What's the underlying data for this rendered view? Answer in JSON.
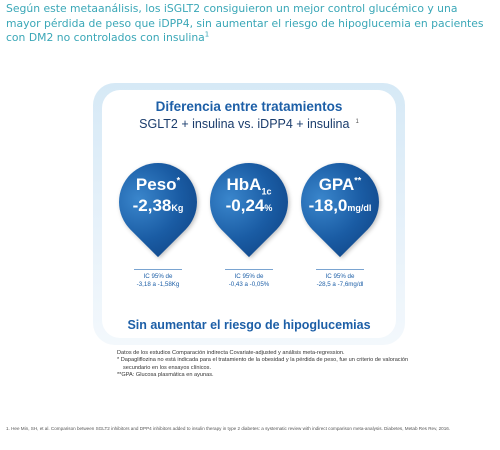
{
  "intro_text": "Según este metaanálisis, los iSGLT2 consiguieron un mejor control glucémico y una mayor pérdida de peso que iDPP4, sin aumentar el riesgo de hipoglucemia en pacientes con DM2 no controlados con insulina",
  "intro_ref": "1",
  "panel": {
    "title_line1": "Diferencia entre tratamientos",
    "title_line2": "SGLT2 + insulina vs. iDPP4 + insulina",
    "title_ref": "1",
    "metrics": [
      {
        "name": "Peso",
        "sup": "*",
        "value": "-2,38",
        "unit": "Kg",
        "ci_line1": "IC 95% de",
        "ci_line2": "-3,18 a -1,58Kg"
      },
      {
        "name": "HbA",
        "sub": "1c",
        "value": "-0,24",
        "unit": "%",
        "ci_line1": "IC 95% de",
        "ci_line2": "-0,43 a -0,05%"
      },
      {
        "name": "GPA",
        "sup": "**",
        "value": "-18,0",
        "unit": "mg/dl",
        "ci_line1": "IC 95% de",
        "ci_line2": "-28,5 a -7,6mg/dl"
      }
    ],
    "bottom_text": "Sin aumentar el riesgo de hipoglucemias"
  },
  "notes": {
    "line1": "Datos de los estudios Comparación indirecta Covariate-adjusted y análisis meta-regression.",
    "line2": "* Dapagliflozina no está indicada para el tratamiento de la obesidad y la pérdida de peso, fue un criterio de valoración",
    "line3": "secundario en los ensayos clínicos.",
    "line4": "**GPA: Glucosa plasmática en ayunas."
  },
  "footnote": "1. Hee Min, SH, et al. Comparison between SGLT2 inhibitors and DPP4 inhibitors added to insulin therapy in type 2 diabetes: a systematic review with indirect comparison meta-analysis. Diabetes, Metab Res Rev, 2016."
}
